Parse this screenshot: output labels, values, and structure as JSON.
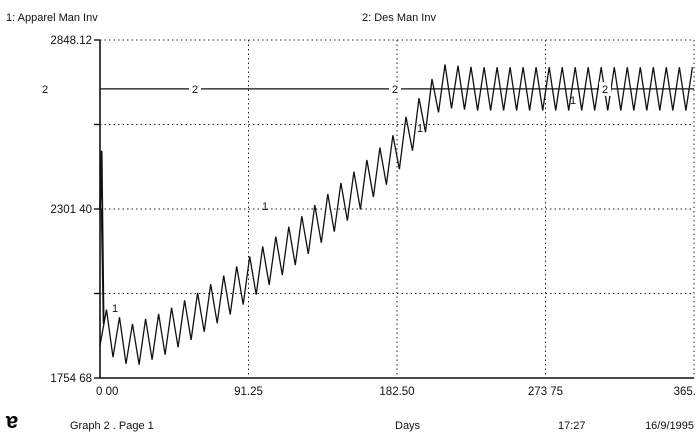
{
  "chart_data": {
    "type": "line",
    "legend": [
      "1: Apparel Man Inv",
      "2: Des Man Inv"
    ],
    "xlabel": "Days",
    "x_ticks": [
      "0 00",
      "91.25",
      "182.50",
      "273 75",
      "365."
    ],
    "y_ticks": [
      "2848.12",
      "2301 40",
      "1754 68"
    ],
    "xlim": [
      0,
      365
    ],
    "ylim": [
      1754.68,
      2848.12
    ],
    "grid": true,
    "series": [
      {
        "name": "Apparel Man Inv",
        "marker": "1",
        "oscillation_period_days": 8,
        "oscillation_amplitude": 140,
        "x": [
          0,
          5,
          20,
          40,
          60,
          80,
          100,
          120,
          140,
          160,
          180,
          200,
          210,
          230,
          260,
          300,
          340,
          365
        ],
        "y": [
          1930,
          1900,
          1860,
          1900,
          1960,
          2030,
          2110,
          2190,
          2280,
          2370,
          2470,
          2620,
          2700,
          2690,
          2690,
          2690,
          2690,
          2690
        ]
      },
      {
        "name": "Des Man Inv",
        "marker": "2",
        "x": [
          0,
          365
        ],
        "y": [
          2690,
          2690
        ]
      }
    ]
  },
  "footer": {
    "graph_label": "Graph 2 . Page 1",
    "time": "17:27",
    "date": "16/9/1995"
  }
}
